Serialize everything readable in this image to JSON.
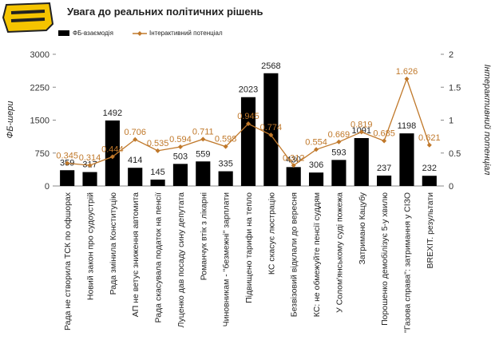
{
  "chart_data": {
    "type": "bar-line",
    "title": "Увага до реальних політичних рішень",
    "y_label": "ФБ-шери",
    "y2_label": "Інтерактивний потенціал",
    "categories": [
      "Рада не створила ТСК по офшорах",
      "Новий закон про судоустрій",
      "Рада змінила Конституцію",
      "АП не ветує зниження автомита",
      "Рада скасувала податок на пенсії",
      "Луценко дав посаду сину депутата",
      "Романчук втік з лікарні",
      "Чиновникам - \"безмежні\" зарплати",
      "Підвищено тарифи на тепло",
      "КС скасує люстрацію",
      "Безвізовий відклали до вересня",
      "КС: не обмежуйте пенсії суддям",
      "У Солом'янському суді пожежа",
      "Затримано Кацубу",
      "Порошенко демобілізує 5-у хвилю",
      "\"Газова справа\": затримання у СІЗО",
      "BREXIT. результати"
    ],
    "series": [
      {
        "name": "ФБ-взаємодія",
        "color": "#000000",
        "values": [
          359,
          317,
          1492,
          414,
          145,
          503,
          559,
          335,
          2023,
          2568,
          430,
          306,
          593,
          1091,
          237,
          1198,
          232
        ]
      },
      {
        "name": "Інтерактивний потенціал",
        "color": "#c0782a",
        "axis": "y2",
        "values": [
          0.345,
          0.314,
          0.444,
          0.706,
          0.535,
          0.594,
          0.711,
          0.598,
          0.945,
          0.774,
          0.312,
          0.554,
          0.669,
          0.819,
          0.685,
          1.626,
          0.621
        ]
      }
    ],
    "ylim": [
      0,
      3000
    ],
    "yticks": [
      0,
      750,
      1500,
      2250,
      3000
    ],
    "y2lim": [
      0,
      2
    ],
    "y2ticks": [
      0,
      0.5,
      1,
      1.5,
      2
    ]
  }
}
